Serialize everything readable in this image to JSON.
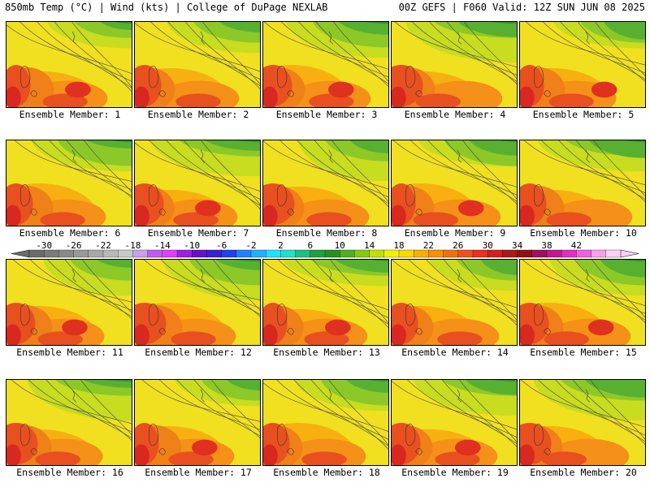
{
  "header": {
    "left": "850mb Temp (°C) | Wind (kts) | College of DuPage NEXLAB",
    "right": "00Z GEFS | F060 Valid: 12Z SUN JUN 08 2025"
  },
  "colorbar": {
    "ticks": [
      "-30",
      "-26",
      "-22",
      "-18",
      "-14",
      "-10",
      "-6",
      "-2",
      "2",
      "6",
      "10",
      "14",
      "18",
      "22",
      "26",
      "30",
      "34",
      "38",
      "42"
    ],
    "colors": [
      "#6b6b6b",
      "#7a7a7a",
      "#8a8a8a",
      "#9a9a9a",
      "#a8a8a8",
      "#b8b8b8",
      "#c8c8c8",
      "#c9a0e8",
      "#c05bf0",
      "#e040ff",
      "#9e20e0",
      "#6a10c8",
      "#3a20d0",
      "#2040f0",
      "#2080ff",
      "#20b0ff",
      "#20e0ff",
      "#20e0c8",
      "#20c080",
      "#20a040",
      "#289020",
      "#50b020",
      "#88c810",
      "#c0e000",
      "#f0f000",
      "#f8d800",
      "#f8b000",
      "#f89000",
      "#f07010",
      "#f05020",
      "#e83020",
      "#d02020",
      "#b01818",
      "#901010",
      "#a01060",
      "#c01890",
      "#e030c0",
      "#f060e0",
      "#f8a0f0",
      "#f8d0f8"
    ]
  },
  "members": [
    {
      "label": "Ensemble Member: 1"
    },
    {
      "label": "Ensemble Member: 2"
    },
    {
      "label": "Ensemble Member: 3"
    },
    {
      "label": "Ensemble Member: 4"
    },
    {
      "label": "Ensemble Member: 5"
    },
    {
      "label": "Ensemble Member: 6"
    },
    {
      "label": "Ensemble Member: 7"
    },
    {
      "label": "Ensemble Member: 8"
    },
    {
      "label": "Ensemble Member: 9"
    },
    {
      "label": "Ensemble Member: 10"
    },
    {
      "label": "Ensemble Member: 11"
    },
    {
      "label": "Ensemble Member: 12"
    },
    {
      "label": "Ensemble Member: 13"
    },
    {
      "label": "Ensemble Member: 14"
    },
    {
      "label": "Ensemble Member: 15"
    },
    {
      "label": "Ensemble Member: 16"
    },
    {
      "label": "Ensemble Member: 17"
    },
    {
      "label": "Ensemble Member: 18"
    },
    {
      "label": "Ensemble Member: 19"
    },
    {
      "label": "Ensemble Member: 20"
    }
  ]
}
